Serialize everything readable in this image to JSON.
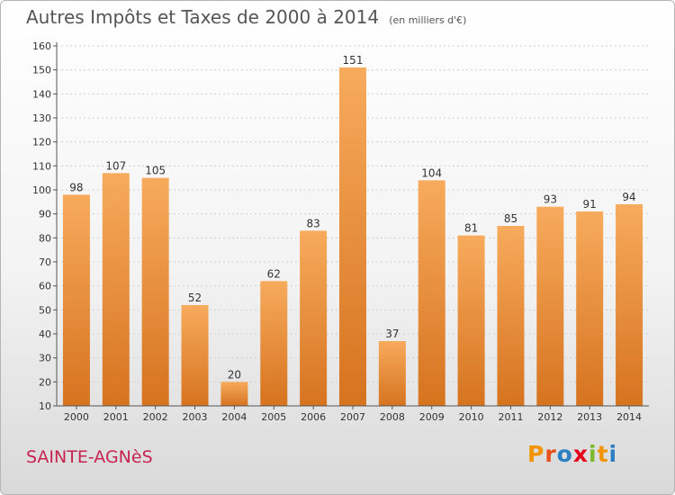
{
  "header": {
    "title": "Autres Impôts et Taxes de 2000 à 2014",
    "unit": "(en milliers d'€)"
  },
  "footer": {
    "commune": "SAINTE-AGNèS",
    "logo": "Proxiti",
    "logo_colors": [
      "#f29400",
      "#e8511c",
      "#2c7fc1",
      "#e3001b",
      "#7ab929",
      "#f29400",
      "#2c7fc1"
    ]
  },
  "colors": {
    "bar_light": "#f7ab5c",
    "bar_dark": "#d6731f",
    "axis": "#555555",
    "grid": "#cfcfcf",
    "text": "#333333"
  },
  "chart_data": {
    "type": "bar",
    "title": "Autres Impôts et Taxes de 2000 à 2014",
    "subtitle": "(en milliers d'€)",
    "categories": [
      "2000",
      "2001",
      "2002",
      "2003",
      "2004",
      "2005",
      "2006",
      "2007",
      "2008",
      "2009",
      "2010",
      "2011",
      "2012",
      "2013",
      "2014"
    ],
    "values": [
      98,
      107,
      105,
      52,
      20,
      62,
      83,
      151,
      37,
      104,
      81,
      85,
      93,
      91,
      94
    ],
    "ylim": [
      10,
      160
    ],
    "yticks": [
      10,
      20,
      30,
      40,
      50,
      60,
      70,
      80,
      90,
      100,
      110,
      120,
      130,
      140,
      150,
      160
    ],
    "grid": true,
    "data_labels": true
  }
}
